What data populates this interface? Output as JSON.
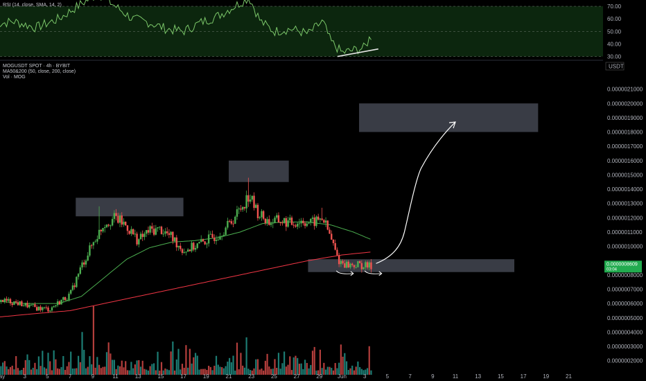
{
  "colors": {
    "background": "#000000",
    "up": "#26a69a",
    "down": "#ef5350",
    "up_candle": "#4caf50",
    "rsi_line": "#7cc86a",
    "ma50": "#4caf50",
    "ma200": "#f23645",
    "zone": "#434651",
    "annotation": "#ffffff",
    "price_tag": "#22ab4f"
  },
  "rsi_panel": {
    "legend": "RSI (14, close, SMA, 14, 2)",
    "ticks": [
      "70.00",
      "60.00",
      "50.00",
      "40.00",
      "30.00"
    ],
    "tick_values": [
      70,
      60,
      50,
      40,
      30
    ],
    "ylim": [
      27,
      75
    ]
  },
  "main_panel": {
    "legend_line1": "MOGUSDT SPOT · 4h · BYBIT",
    "legend_line2": "MA50&200 (50, close, 200, close)",
    "legend_line3": "Vol · MOG",
    "currency": "USDT",
    "price_ticks": [
      "0.0000021000",
      "0.0000020000",
      "0.0000019000",
      "0.0000018000",
      "0.0000017000",
      "0.0000016000",
      "0.0000015000",
      "0.0000014000",
      "0.0000013000",
      "0.0000012000",
      "0.0000011000",
      "0.0000010000",
      "0.0000008000",
      "0.0000007000",
      "0.0000006000",
      "0.0000005000",
      "0.0000004000",
      "0.0000003000",
      "0.0000002000"
    ],
    "price_tick_values": [
      2.1e-06,
      2e-06,
      1.9e-06,
      1.8e-06,
      1.7e-06,
      1.6e-06,
      1.5e-06,
      1.4e-06,
      1.3e-06,
      1.2e-06,
      1.1e-06,
      1e-06,
      8e-07,
      7e-07,
      6e-07,
      5e-07,
      4e-07,
      3e-07,
      2e-07
    ],
    "current_price": "0.0000008609",
    "current_price_sub": "03:04",
    "current_price_value": 8.609e-07
  },
  "time_axis": {
    "labels": [
      "ay",
      "3",
      "5",
      "7",
      "9",
      "11",
      "13",
      "15",
      "17",
      "19",
      "21",
      "23",
      "25",
      "27",
      "29",
      "Jun",
      "3",
      "5",
      "7",
      "9",
      "11",
      "13",
      "15",
      "17",
      "19",
      "21"
    ],
    "day_positions": [
      1,
      3,
      5,
      7,
      9,
      11,
      13,
      15,
      17,
      19,
      21,
      23,
      25,
      27,
      29,
      31,
      33,
      35,
      37,
      39,
      41,
      43,
      45,
      47,
      49,
      51
    ]
  },
  "chart_data": {
    "type": "candlestick",
    "timeframe": "4h",
    "symbol": "MOGUSDT",
    "ylim": [
      1.5e-07,
      2.2e-06
    ],
    "anchors": [
      {
        "day": 0.0,
        "price": 6.3e-07
      },
      {
        "day": 2.0,
        "price": 6.1e-07
      },
      {
        "day": 4.0,
        "price": 5.7e-07
      },
      {
        "day": 5.2,
        "price": 5.6e-07
      },
      {
        "day": 6.2,
        "price": 6.2e-07
      },
      {
        "day": 7.0,
        "price": 6.6e-07
      },
      {
        "day": 8.0,
        "price": 8.6e-07
      },
      {
        "day": 9.0,
        "price": 1.02e-06
      },
      {
        "day": 10.0,
        "price": 1.16e-06
      },
      {
        "day": 11.0,
        "price": 1.2e-06
      },
      {
        "day": 12.0,
        "price": 1.14e-06
      },
      {
        "day": 13.0,
        "price": 1.04e-06
      },
      {
        "day": 14.0,
        "price": 1.11e-06
      },
      {
        "day": 15.0,
        "price": 1.12e-06
      },
      {
        "day": 16.0,
        "price": 1.06e-06
      },
      {
        "day": 17.0,
        "price": 9.7e-07
      },
      {
        "day": 18.0,
        "price": 1e-06
      },
      {
        "day": 19.0,
        "price": 1.04e-06
      },
      {
        "day": 20.0,
        "price": 1.08e-06
      },
      {
        "day": 21.0,
        "price": 1.15e-06
      },
      {
        "day": 22.0,
        "price": 1.26e-06
      },
      {
        "day": 22.8,
        "price": 1.36e-06
      },
      {
        "day": 23.5,
        "price": 1.24e-06
      },
      {
        "day": 24.5,
        "price": 1.17e-06
      },
      {
        "day": 25.5,
        "price": 1.18e-06
      },
      {
        "day": 26.5,
        "price": 1.16e-06
      },
      {
        "day": 27.5,
        "price": 1.18e-06
      },
      {
        "day": 28.3,
        "price": 1.16e-06
      },
      {
        "day": 29.3,
        "price": 1.2e-06
      },
      {
        "day": 30.0,
        "price": 1.06e-06
      },
      {
        "day": 30.7,
        "price": 9e-07
      },
      {
        "day": 31.5,
        "price": 8.7e-07
      },
      {
        "day": 32.5,
        "price": 8.7e-07
      },
      {
        "day": 33.2,
        "price": 8.6e-07
      }
    ],
    "spike_highs": [
      {
        "day": 9.6,
        "price": 1.28e-06
      },
      {
        "day": 22.7,
        "price": 1.48e-06
      },
      {
        "day": 29.2,
        "price": 1.27e-06
      }
    ],
    "ma50_anchors": [
      {
        "day": 0.0,
        "price": 6.2e-07
      },
      {
        "day": 3.0,
        "price": 6e-07
      },
      {
        "day": 6.0,
        "price": 6e-07
      },
      {
        "day": 8.0,
        "price": 6.5e-07
      },
      {
        "day": 10.0,
        "price": 7.8e-07
      },
      {
        "day": 12.0,
        "price": 9.1e-07
      },
      {
        "day": 14.0,
        "price": 9.9e-07
      },
      {
        "day": 16.0,
        "price": 1.03e-06
      },
      {
        "day": 18.0,
        "price": 1.04e-06
      },
      {
        "day": 20.0,
        "price": 1.06e-06
      },
      {
        "day": 22.0,
        "price": 1.1e-06
      },
      {
        "day": 24.0,
        "price": 1.16e-06
      },
      {
        "day": 26.0,
        "price": 1.17e-06
      },
      {
        "day": 28.0,
        "price": 1.17e-06
      },
      {
        "day": 30.0,
        "price": 1.15e-06
      },
      {
        "day": 32.0,
        "price": 1.1e-06
      },
      {
        "day": 33.5,
        "price": 1.05e-06
      }
    ],
    "ma200_anchors": [
      {
        "day": 0.0,
        "price": 5e-07
      },
      {
        "day": 4.0,
        "price": 5.3e-07
      },
      {
        "day": 7.0,
        "price": 5.5e-07
      },
      {
        "day": 10.0,
        "price": 6e-07
      },
      {
        "day": 13.0,
        "price": 6.5e-07
      },
      {
        "day": 16.0,
        "price": 7e-07
      },
      {
        "day": 19.0,
        "price": 7.5e-07
      },
      {
        "day": 22.0,
        "price": 8e-07
      },
      {
        "day": 25.0,
        "price": 8.5e-07
      },
      {
        "day": 28.0,
        "price": 9e-07
      },
      {
        "day": 31.0,
        "price": 9.4e-07
      },
      {
        "day": 33.5,
        "price": 9.6e-07
      }
    ],
    "rsi_anchors": [
      {
        "day": 0.0,
        "value": 55
      },
      {
        "day": 2.0,
        "value": 58
      },
      {
        "day": 4.0,
        "value": 53
      },
      {
        "day": 6.0,
        "value": 60
      },
      {
        "day": 8.0,
        "value": 72
      },
      {
        "day": 9.5,
        "value": 80
      },
      {
        "day": 11.0,
        "value": 70
      },
      {
        "day": 12.5,
        "value": 60
      },
      {
        "day": 14.0,
        "value": 57
      },
      {
        "day": 15.5,
        "value": 52
      },
      {
        "day": 17.0,
        "value": 50
      },
      {
        "day": 18.5,
        "value": 57
      },
      {
        "day": 20.0,
        "value": 62
      },
      {
        "day": 21.5,
        "value": 70
      },
      {
        "day": 22.8,
        "value": 77
      },
      {
        "day": 23.8,
        "value": 58
      },
      {
        "day": 25.0,
        "value": 50
      },
      {
        "day": 26.5,
        "value": 52
      },
      {
        "day": 28.0,
        "value": 48
      },
      {
        "day": 29.3,
        "value": 58
      },
      {
        "day": 30.0,
        "value": 42
      },
      {
        "day": 31.0,
        "value": 33
      },
      {
        "day": 32.0,
        "value": 35
      },
      {
        "day": 33.0,
        "value": 37
      },
      {
        "day": 33.5,
        "value": 46
      }
    ],
    "rsi_trendline": [
      {
        "day": 30.6,
        "value": 30
      },
      {
        "day": 34.2,
        "value": 36
      }
    ],
    "zones": [
      {
        "name": "resistance-zone-1",
        "day_start": 7.5,
        "day_end": 17.0,
        "price_top": 1.34e-06,
        "price_bottom": 1.21e-06
      },
      {
        "name": "resistance-zone-2",
        "day_start": 21.0,
        "day_end": 26.3,
        "price_top": 1.6e-06,
        "price_bottom": 1.45e-06
      },
      {
        "name": "support-zone",
        "day_start": 28.0,
        "day_end": 46.2,
        "price_top": 9.1e-07,
        "price_bottom": 8.2e-07
      },
      {
        "name": "target-zone",
        "day_start": 32.5,
        "day_end": 48.3,
        "price_top": 2e-06,
        "price_bottom": 1.8e-06
      }
    ],
    "projection": [
      {
        "day": 34.0,
        "price": 8.8e-07
      },
      {
        "day": 36.5,
        "price": 1.1e-06
      },
      {
        "day": 38.0,
        "price": 1.55e-06
      },
      {
        "day": 41.0,
        "price": 1.87e-06
      }
    ],
    "bounce_arrows": [
      {
        "day_start": 30.5,
        "day_end": 32.0,
        "price": 8.1e-07
      },
      {
        "day_start": 33.0,
        "day_end": 34.5,
        "price": 8.1e-07
      }
    ],
    "volume_spikes": [
      {
        "day": 9.0,
        "value": 0.55
      },
      {
        "day": 22.6,
        "value": 0.45
      },
      {
        "day": 16.0,
        "value": 0.4
      }
    ]
  }
}
